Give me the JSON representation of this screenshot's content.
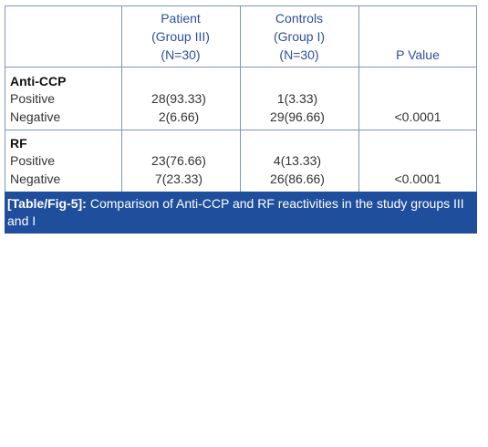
{
  "table": {
    "header": [
      [
        "Patient",
        "(Group III)",
        "(N=30)"
      ],
      [
        "Controls",
        "(Group I)",
        "(N=30)"
      ],
      [
        "P Value"
      ]
    ],
    "groups": [
      {
        "title": "Anti-CCP",
        "rows": [
          {
            "label": "Positive",
            "patient": "28(93.33)",
            "controls": "1(3.33)"
          },
          {
            "label": "Negative",
            "patient": "2(6.66)",
            "controls": "29(96.66)"
          }
        ],
        "p_value": "<0.0001"
      },
      {
        "title": "RF",
        "rows": [
          {
            "label": "Positive",
            "patient": "23(76.66)",
            "controls": "4(13.33)"
          },
          {
            "label": "Negative",
            "patient": "7(23.33)",
            "controls": "26(86.66)"
          }
        ],
        "p_value": "<0.0001"
      }
    ],
    "caption": {
      "label": "[Table/Fig-5]:",
      "text": "Comparison of Anti-CCP and RF reactivities in the study groups III and I"
    }
  }
}
